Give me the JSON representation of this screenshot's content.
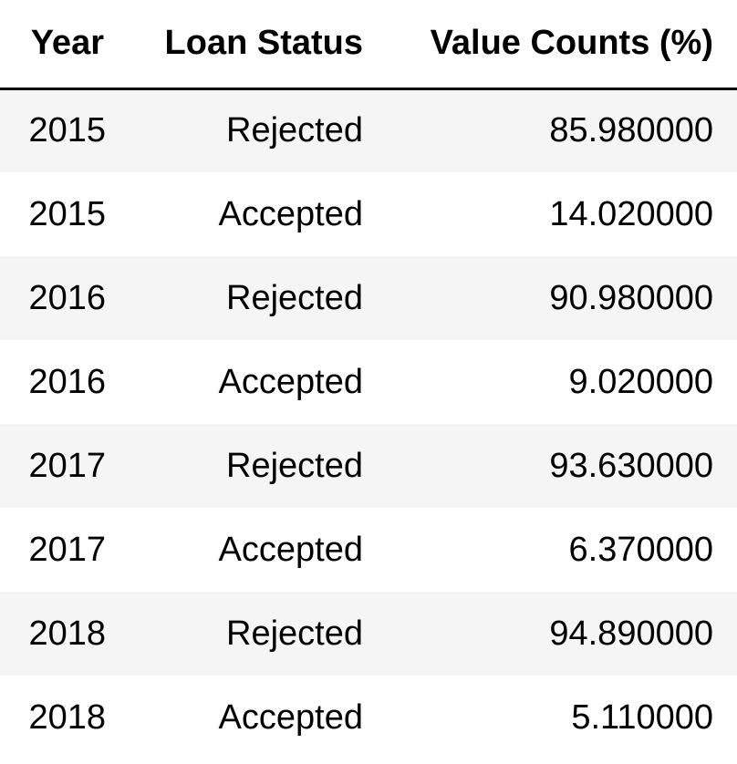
{
  "table": {
    "headers": [
      "Year",
      "Loan Status",
      "Value Counts (%)"
    ],
    "rows": [
      [
        "2015",
        "Rejected",
        "85.980000"
      ],
      [
        "2015",
        "Accepted",
        "14.020000"
      ],
      [
        "2016",
        "Rejected",
        "90.980000"
      ],
      [
        "2016",
        "Accepted",
        "9.020000"
      ],
      [
        "2017",
        "Rejected",
        "93.630000"
      ],
      [
        "2017",
        "Accepted",
        "6.370000"
      ],
      [
        "2018",
        "Rejected",
        "94.890000"
      ],
      [
        "2018",
        "Accepted",
        "5.110000"
      ]
    ]
  }
}
